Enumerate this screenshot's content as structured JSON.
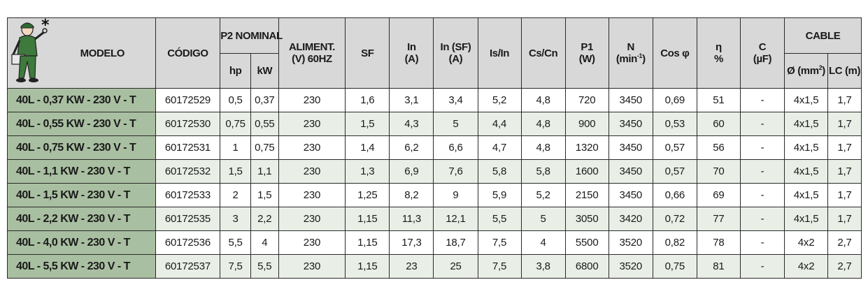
{
  "header": {
    "modelo": "MODELO",
    "codigo": "CÓDIGO",
    "p2_nominal": "P2 NOMINAL",
    "hp": "hp",
    "kw": "kW",
    "aliment_line1": "ALIMENT.",
    "aliment_line2": "(V) 60HZ",
    "sf": "SF",
    "in_line1": "In",
    "in_line2": "(A)",
    "insf_line1": "In (SF)",
    "insf_line2": "(A)",
    "isin": "Is/In",
    "cscn": "Cs/Cn",
    "p1_line1": "P1",
    "p1_line2": "(W)",
    "n_line1": "N",
    "n_line2_base": "(min",
    "n_line2_sup": "-1",
    "n_line2_end": ")",
    "cos": "Cos φ",
    "eta_line1": "η",
    "eta_line2": "%",
    "c_line1": "C",
    "c_line2": "(µF)",
    "cable": "CABLE",
    "diam_base": "Ø (mm",
    "diam_sup": "2",
    "diam_end": ")",
    "lc": "LC (m)"
  },
  "logo_icon": "worker-with-wrench-and-toolbox",
  "rows": [
    [
      "40L - 0,37 KW - 230 V - T",
      "60172529",
      "0,5",
      "0,37",
      "230",
      "1,6",
      "3,1",
      "3,4",
      "5,2",
      "4,8",
      "720",
      "3450",
      "0,69",
      "51",
      "-",
      "4x1,5",
      "1,7"
    ],
    [
      "40L - 0,55 KW - 230 V - T",
      "60172530",
      "0,75",
      "0,55",
      "230",
      "1,5",
      "4,3",
      "5",
      "4,4",
      "4,8",
      "900",
      "3450",
      "0,53",
      "60",
      "-",
      "4x1,5",
      "1,7"
    ],
    [
      "40L - 0,75 KW - 230 V - T",
      "60172531",
      "1",
      "0,75",
      "230",
      "1,4",
      "6,2",
      "6,6",
      "4,7",
      "4,8",
      "1320",
      "3450",
      "0,57",
      "56",
      "-",
      "4x1,5",
      "1,7"
    ],
    [
      "40L - 1,1 KW - 230 V - T",
      "60172532",
      "1,5",
      "1,1",
      "230",
      "1,3",
      "6,9",
      "7,6",
      "5,8",
      "5,8",
      "1600",
      "3450",
      "0,57",
      "70",
      "-",
      "4x1,5",
      "1,7"
    ],
    [
      "40L - 1,5 KW - 230 V - T",
      "60172533",
      "2",
      "1,5",
      "230",
      "1,25",
      "8,2",
      "9",
      "5,9",
      "5,2",
      "2150",
      "3450",
      "0,66",
      "69",
      "-",
      "4x1,5",
      "1,7"
    ],
    [
      "40L - 2,2 KW - 230 V - T",
      "60172535",
      "3",
      "2,2",
      "230",
      "1,15",
      "11,3",
      "12,1",
      "5,5",
      "5",
      "3050",
      "3420",
      "0,72",
      "77",
      "-",
      "4x1,5",
      "1,7"
    ],
    [
      "40L - 4,0 KW - 230 V - T",
      "60172536",
      "5,5",
      "4",
      "230",
      "1,15",
      "17,3",
      "18,7",
      "7,5",
      "4",
      "5500",
      "3520",
      "0,82",
      "78",
      "-",
      "4x2",
      "2,7"
    ],
    [
      "40L - 5,5 KW - 230 V - T",
      "60172537",
      "7,5",
      "5,5",
      "230",
      "1,15",
      "23",
      "25",
      "7,5",
      "3,8",
      "6800",
      "3520",
      "0,75",
      "81",
      "-",
      "4x2",
      "2,7"
    ]
  ]
}
